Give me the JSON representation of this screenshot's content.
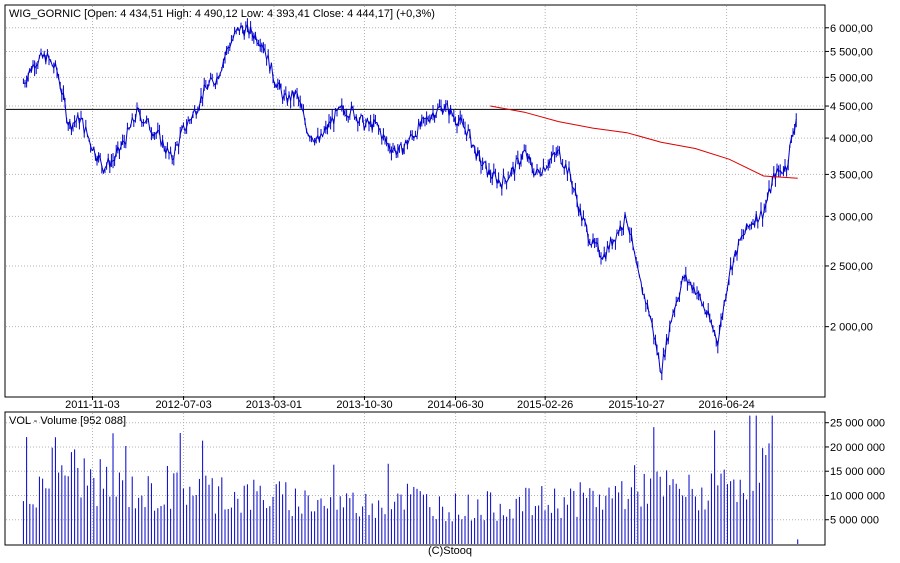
{
  "price_header": "WIG_GORNIC [Open: 4 434,51  High: 4 490,12  Low: 4 393,41  Close: 4 444,17] (+0,3%)",
  "volume_header": "VOL - Volume [952 088]",
  "credit": "(C)Stooq",
  "colors": {
    "price": "#0000cc",
    "average": "#dd0000",
    "volume": "#0000cc",
    "reference": "#000000",
    "frame": "#000000",
    "grid": "#b4b4b4"
  },
  "chart_data": [
    {
      "type": "candlestick",
      "title": "WIG_GORNIC",
      "scale": "log",
      "ylim": [
        1550,
        6500
      ],
      "y_ticks": [
        "6 000,00",
        "5 500,00",
        "5 000,00",
        "4 500,00",
        "4 000,00",
        "3 500,00",
        "3 000,00",
        "2 500,00",
        "2 000,00"
      ],
      "x_ticks": [
        "2011-11-03",
        "2012-07-03",
        "2013-03-01",
        "2013-10-30",
        "2014-06-30",
        "2015-02-26",
        "2015-10-27",
        "2016-06-24"
      ],
      "last_close": 4444.17,
      "series": [
        {
          "name": "WIG_GORNIC",
          "x": [
            "2011-05",
            "2011-06",
            "2011-07",
            "2011-08",
            "2011-09",
            "2011-10",
            "2011-11",
            "2011-12",
            "2012-01",
            "2012-02",
            "2012-03",
            "2012-04",
            "2012-05",
            "2012-06",
            "2012-07",
            "2012-08",
            "2012-09",
            "2012-10",
            "2012-11",
            "2012-12",
            "2013-01",
            "2013-02",
            "2013-03",
            "2013-04",
            "2013-05",
            "2013-06",
            "2013-07",
            "2013-08",
            "2013-09",
            "2013-10",
            "2013-11",
            "2013-12",
            "2014-01",
            "2014-02",
            "2014-03",
            "2014-04",
            "2014-05",
            "2014-06",
            "2014-07",
            "2014-08",
            "2014-09",
            "2014-10",
            "2014-11",
            "2014-12",
            "2015-01",
            "2015-02",
            "2015-03",
            "2015-04",
            "2015-05",
            "2015-06",
            "2015-07",
            "2015-08",
            "2015-09",
            "2015-10",
            "2015-11",
            "2015-12",
            "2016-01",
            "2016-02",
            "2016-03",
            "2016-04",
            "2016-05",
            "2016-06",
            "2016-07",
            "2016-08",
            "2016-09",
            "2016-10",
            "2016-11",
            "2016-12",
            "2017-01"
          ],
          "values": [
            4900,
            5300,
            5400,
            5100,
            4200,
            4300,
            3900,
            3600,
            3700,
            4000,
            4400,
            4200,
            4000,
            3700,
            4100,
            4400,
            4800,
            5000,
            5600,
            6000,
            5900,
            5700,
            5000,
            4600,
            4700,
            4100,
            3950,
            4250,
            4450,
            4400,
            4200,
            4200,
            3900,
            3800,
            4000,
            4200,
            4400,
            4500,
            4300,
            4100,
            3700,
            3500,
            3400,
            3550,
            3800,
            3500,
            3650,
            3800,
            3500,
            3000,
            2700,
            2600,
            2800,
            3000,
            2400,
            2100,
            1700,
            2100,
            2400,
            2300,
            2100,
            1900,
            2450,
            2750,
            2950,
            3050,
            3500,
            3600,
            4444.17
          ]
        },
        {
          "name": "average",
          "x": [
            "2014-10",
            "2015-01",
            "2015-04",
            "2015-07",
            "2015-10",
            "2016-01",
            "2016-04",
            "2016-07",
            "2016-10",
            "2017-01"
          ],
          "values": [
            4500,
            4400,
            4250,
            4150,
            4080,
            3940,
            3850,
            3700,
            3480,
            3450
          ]
        }
      ]
    },
    {
      "type": "bar",
      "title": "VOL - Volume",
      "ylim": [
        0,
        27000000
      ],
      "y_ticks": [
        "25 000 000",
        "20 000 000",
        "15 000 000",
        "10 000 000",
        "5 000 000"
      ],
      "last_volume": 952088,
      "series": [
        {
          "name": "Volume",
          "x": [
            "2011-05",
            "2011-08",
            "2011-11",
            "2012-02",
            "2012-05",
            "2012-08",
            "2012-11",
            "2013-02",
            "2013-05",
            "2013-08",
            "2013-11",
            "2014-02",
            "2014-05",
            "2014-08",
            "2014-11",
            "2015-02",
            "2015-05",
            "2015-08",
            "2015-11",
            "2016-02",
            "2016-05",
            "2016-08",
            "2016-11",
            "2017-01"
          ],
          "values": [
            9000000,
            17000000,
            13000000,
            11000000,
            10000000,
            12000000,
            9500000,
            10000000,
            9000000,
            8500000,
            8000000,
            10500000,
            8000000,
            7500000,
            8000000,
            8500000,
            9000000,
            9500000,
            12000000,
            11000000,
            10000000,
            14000000,
            17000000,
            952088
          ]
        }
      ]
    }
  ]
}
